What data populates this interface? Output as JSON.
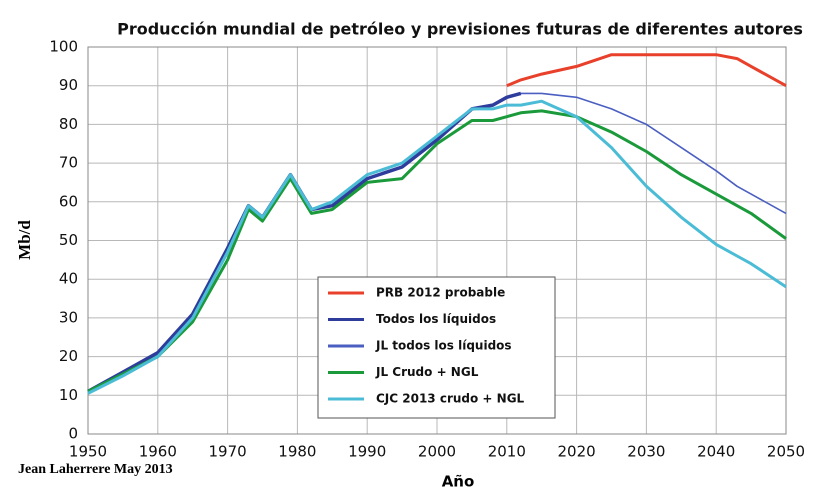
{
  "chart_data": {
    "type": "line",
    "title": "Producción mundial de petróleo y previsiones futuras de diferentes autores",
    "y_label": "Mb/d",
    "x_label": "Año",
    "note": "Jean Laherrere May 2013",
    "x": [
      1950,
      1955,
      1960,
      1965,
      1970,
      1973,
      1975,
      1979,
      1982,
      1985,
      1990,
      1995,
      2000,
      2005,
      2008,
      2010,
      2012,
      2015,
      2020,
      2025,
      2030,
      2035,
      2040,
      2043,
      2045,
      2050
    ],
    "series": [
      {
        "name": "PRB 2012 probable",
        "color": "#e8402a",
        "values": [
          null,
          null,
          null,
          null,
          null,
          null,
          null,
          null,
          null,
          null,
          null,
          null,
          null,
          null,
          null,
          90,
          91.5,
          93,
          95,
          98,
          98,
          98,
          98,
          97,
          95,
          90
        ]
      },
      {
        "name": "Todos los líquidos",
        "color": "#2e3d9c",
        "values": [
          11,
          16,
          21,
          31,
          48,
          59,
          56,
          67,
          58,
          59,
          66,
          69,
          76,
          84,
          85,
          87,
          88,
          null,
          null,
          null,
          null,
          null,
          null,
          null,
          null,
          null
        ]
      },
      {
        "name": "JL todos los líquidos",
        "color": "#4a5fc1",
        "values": [
          11,
          16,
          21,
          31,
          48,
          59,
          56,
          67,
          58,
          59,
          66,
          69,
          76,
          84,
          85,
          87,
          88,
          88,
          87,
          84,
          80,
          74,
          68,
          64,
          62,
          57
        ]
      },
      {
        "name": "JL Crudo + NGL",
        "color": "#1a9a3a",
        "values": [
          11,
          15.5,
          20,
          29,
          45,
          58,
          55,
          66,
          57,
          58,
          65,
          66,
          75,
          81,
          81,
          82,
          83,
          83.5,
          82,
          78,
          73,
          67,
          62,
          59,
          57,
          50.5
        ]
      },
      {
        "name": "CJC 2013 crudo + NGL",
        "color": "#4bbcd6",
        "values": [
          10.5,
          15,
          20,
          30,
          47,
          59,
          56,
          67,
          58,
          60,
          67,
          70,
          77,
          84,
          84,
          85,
          85,
          86,
          82,
          74,
          64,
          56,
          49,
          46,
          44,
          38
        ]
      }
    ],
    "xlim": [
      1950,
      2050
    ],
    "xticks": [
      1950,
      1960,
      1970,
      1980,
      1990,
      2000,
      2010,
      2020,
      2030,
      2040,
      2050
    ],
    "ylim": [
      0,
      100
    ],
    "yticks": [
      0,
      10,
      20,
      30,
      40,
      50,
      60,
      70,
      80,
      90,
      100
    ],
    "grid": true,
    "legend": "lower center"
  }
}
